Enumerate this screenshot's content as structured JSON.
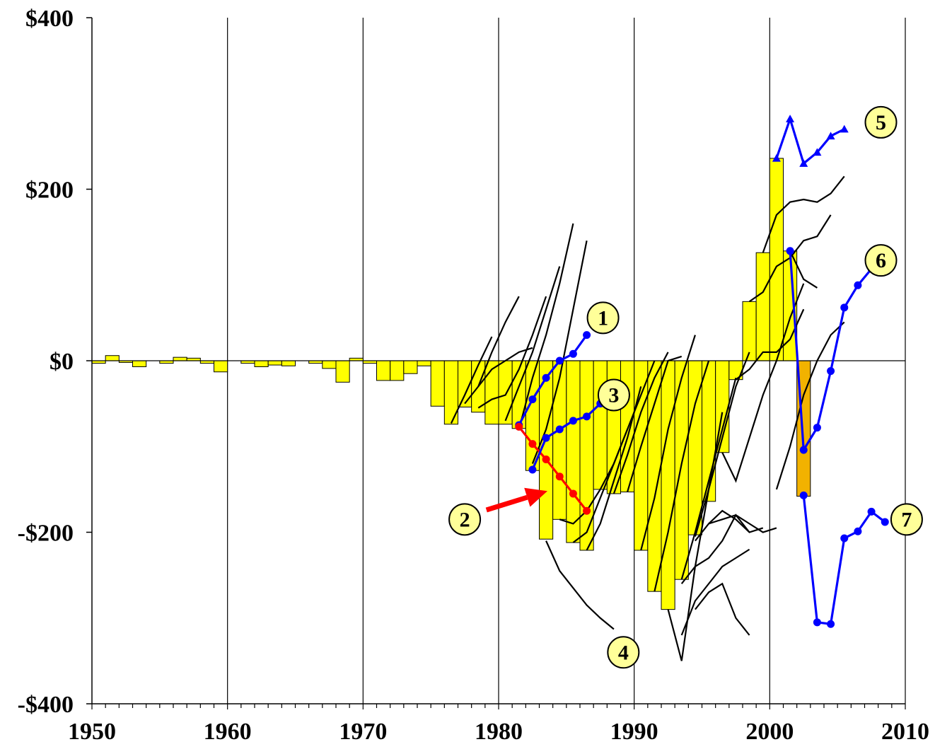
{
  "chart_data": {
    "type": "bar",
    "title": "",
    "xlabel": "",
    "ylabel": "",
    "xlim": [
      1950,
      2010
    ],
    "ylim": [
      -400,
      400
    ],
    "x_ticks": [
      1950,
      1960,
      1970,
      1980,
      1990,
      2000,
      2010
    ],
    "x_tick_labels": [
      "1950",
      "1960",
      "1970",
      "1980",
      "1990",
      "2000",
      "2010"
    ],
    "y_ticks": [
      400,
      200,
      0,
      -200,
      -400
    ],
    "y_tick_labels": [
      "$400",
      "$200",
      "$0",
      "-$200",
      "-$400"
    ],
    "grid": "vertical lines at decades",
    "bars": {
      "years": [
        1950,
        1951,
        1952,
        1953,
        1954,
        1955,
        1956,
        1957,
        1958,
        1959,
        1960,
        1961,
        1962,
        1963,
        1964,
        1965,
        1966,
        1967,
        1968,
        1969,
        1970,
        1971,
        1972,
        1973,
        1974,
        1975,
        1976,
        1977,
        1978,
        1979,
        1980,
        1981,
        1982,
        1983,
        1984,
        1985,
        1986,
        1987,
        1988,
        1989,
        1990,
        1991,
        1992,
        1993,
        1994,
        1995,
        1996,
        1997,
        1998,
        1999,
        2000,
        2001
      ],
      "values": [
        -3,
        6,
        -2,
        -7,
        0,
        -3,
        4,
        3,
        -3,
        -13,
        0,
        -3,
        -7,
        -5,
        -6,
        0,
        -3,
        -9,
        -25,
        3,
        -3,
        -23,
        -23,
        -15,
        -6,
        -53,
        -74,
        -54,
        -60,
        -74,
        -74,
        -79,
        -128,
        -208,
        -185,
        -212,
        -221,
        -150,
        -155,
        -153,
        -221,
        -269,
        -290,
        -255,
        -203,
        -164,
        -107,
        -22,
        69,
        126,
        236,
        128
      ],
      "color": "#ffff00",
      "highlight": {
        "year": 2002,
        "value": -158,
        "color": "#f2b200"
      }
    },
    "projection_lines": [
      {
        "x": [
          1976,
          1977,
          1978,
          1979
        ],
        "y": [
          -73,
          -40,
          -5,
          28
        ]
      },
      {
        "x": [
          1977,
          1978,
          1979,
          1980,
          1981
        ],
        "y": [
          -50,
          -30,
          10,
          45,
          75
        ]
      },
      {
        "x": [
          1978,
          1979,
          1980,
          1981,
          1982,
          1983
        ],
        "y": [
          -55,
          -45,
          -40,
          -10,
          30,
          75
        ]
      },
      {
        "x": [
          1978,
          1979,
          1980,
          1981,
          1982
        ],
        "y": [
          -30,
          -10,
          0,
          10,
          15
        ]
      },
      {
        "x": [
          1980,
          1981,
          1982,
          1983,
          1984
        ],
        "y": [
          -70,
          -30,
          10,
          60,
          110
        ]
      },
      {
        "x": [
          1981,
          1982,
          1983,
          1984,
          1985
        ],
        "y": [
          -80,
          -20,
          30,
          90,
          160
        ]
      },
      {
        "x": [
          1982,
          1983,
          1984,
          1985,
          1986
        ],
        "y": [
          -120,
          -80,
          -20,
          60,
          140
        ]
      },
      {
        "x": [
          1983,
          1984,
          1985,
          1986,
          1987,
          1988
        ],
        "y": [
          -210,
          -245,
          -265,
          -285,
          -300,
          -313
        ]
      },
      {
        "x": [
          1984,
          1985,
          1986,
          1987
        ],
        "y": [
          -185,
          -190,
          -175,
          -150
        ]
      },
      {
        "x": [
          1985,
          1986,
          1987,
          1988,
          1989
        ],
        "y": [
          -212,
          -200,
          -160,
          -120,
          -80
        ]
      },
      {
        "x": [
          1986,
          1987,
          1988,
          1989,
          1990
        ],
        "y": [
          -221,
          -190,
          -140,
          -90,
          -30
        ]
      },
      {
        "x": [
          1987,
          1988,
          1989,
          1990,
          1991
        ],
        "y": [
          -150,
          -120,
          -80,
          -40,
          0
        ]
      },
      {
        "x": [
          1988,
          1989,
          1990,
          1991,
          1992
        ],
        "y": [
          -155,
          -110,
          -60,
          -20,
          10
        ]
      },
      {
        "x": [
          1989,
          1990,
          1991,
          1992,
          1993
        ],
        "y": [
          -153,
          -100,
          -50,
          0,
          5
        ]
      },
      {
        "x": [
          1990,
          1991,
          1992,
          1993,
          1994
        ],
        "y": [
          -221,
          -160,
          -80,
          -20,
          30
        ]
      },
      {
        "x": [
          1991,
          1992,
          1993,
          1994,
          1995
        ],
        "y": [
          -269,
          -200,
          -120,
          -50,
          0
        ]
      },
      {
        "x": [
          1992,
          1993,
          1994,
          1995,
          1996
        ],
        "y": [
          -290,
          -350,
          -240,
          -150,
          -60
        ]
      },
      {
        "x": [
          1993,
          1994,
          1995,
          1996,
          1997
        ],
        "y": [
          -255,
          -200,
          -140,
          -80,
          -20
        ]
      },
      {
        "x": [
          1994,
          1995,
          1996,
          1997,
          1998
        ],
        "y": [
          -205,
          -150,
          -90,
          -30,
          10
        ]
      },
      {
        "x": [
          1993,
          1994,
          1995,
          1996,
          1997,
          1998
        ],
        "y": [
          -260,
          -240,
          -230,
          -210,
          -180,
          -200
        ]
      },
      {
        "x": [
          1994,
          1995,
          1996,
          1997,
          1998,
          1999
        ],
        "y": [
          -210,
          -190,
          -175,
          -185,
          -200,
          -195
        ]
      },
      {
        "x": [
          1995,
          1996,
          1997,
          1998,
          1999,
          2000
        ],
        "y": [
          -190,
          -185,
          -180,
          -190,
          -200,
          -195
        ]
      },
      {
        "x": [
          1993,
          1994,
          1995,
          1996,
          1997,
          1998
        ],
        "y": [
          -320,
          -280,
          -260,
          -240,
          -230,
          -220
        ]
      },
      {
        "x": [
          1994,
          1995,
          1996,
          1997,
          1998
        ],
        "y": [
          -290,
          -270,
          -260,
          -300,
          -320
        ]
      },
      {
        "x": [
          1996,
          1997,
          1998,
          1999,
          2000,
          2001,
          2002
        ],
        "y": [
          -107,
          -140,
          -90,
          -40,
          0,
          50,
          90
        ]
      },
      {
        "x": [
          1997,
          1998,
          1999,
          2000,
          2001,
          2002
        ],
        "y": [
          -22,
          -10,
          10,
          10,
          25,
          60
        ]
      },
      {
        "x": [
          1998,
          1999,
          2000,
          2001,
          2002,
          2003,
          2004
        ],
        "y": [
          69,
          80,
          110,
          120,
          140,
          145,
          170
        ]
      },
      {
        "x": [
          1999,
          2000,
          2001,
          2002,
          2003,
          2004,
          2005
        ],
        "y": [
          126,
          170,
          185,
          188,
          185,
          195,
          215
        ]
      },
      {
        "x": [
          2001,
          2002,
          2003
        ],
        "y": [
          128,
          95,
          85
        ]
      },
      {
        "x": [
          2000,
          2001,
          2002,
          2003,
          2004,
          2005
        ],
        "y": [
          -150,
          -100,
          -40,
          0,
          30,
          45
        ]
      }
    ],
    "highlighted_series": [
      {
        "callout": "1",
        "color": "#0000ff",
        "marker": "circle",
        "x": [
          1981,
          1982,
          1983,
          1984,
          1985,
          1986
        ],
        "y": [
          -75,
          -45,
          -20,
          0,
          8,
          30
        ]
      },
      {
        "callout": "2",
        "color": "#ff0000",
        "marker": "circle",
        "x": [
          1981,
          1982,
          1983,
          1984,
          1985,
          1986
        ],
        "y": [
          -77,
          -97,
          -115,
          -135,
          -155,
          -175
        ]
      },
      {
        "callout": "3",
        "color": "#0000ff",
        "marker": "circle",
        "x": [
          1982,
          1983,
          1984,
          1985,
          1986,
          1987
        ],
        "y": [
          -127,
          -90,
          -80,
          -70,
          -65,
          -50
        ]
      },
      {
        "callout": "5",
        "color": "#0000ff",
        "marker": "triangle",
        "x": [
          2000,
          2001,
          2002,
          2003,
          2004,
          2005
        ],
        "y": [
          236,
          282,
          230,
          243,
          262,
          270
        ]
      },
      {
        "callout": "6",
        "color": "#0000ff",
        "marker": "circle",
        "x": [
          2001,
          2002,
          2003,
          2004,
          2005,
          2006,
          2007
        ],
        "y": [
          128,
          -104,
          -78,
          -12,
          62,
          88,
          107
        ]
      },
      {
        "callout": "7",
        "color": "#0000ff",
        "marker": "circle",
        "x": [
          2002,
          2003,
          2004,
          2005,
          2006,
          2007,
          2008
        ],
        "y": [
          -157,
          -305,
          -307,
          -207,
          -199,
          -176,
          -188
        ]
      }
    ],
    "callouts": [
      {
        "label": "1",
        "x": 1987.7,
        "y": 50
      },
      {
        "label": "2",
        "x": 1977.5,
        "y": -185
      },
      {
        "label": "3",
        "x": 1988.5,
        "y": -40
      },
      {
        "label": "4",
        "x": 1989.2,
        "y": -340
      },
      {
        "label": "5",
        "x": 2008.2,
        "y": 278
      },
      {
        "label": "6",
        "x": 2008.2,
        "y": 117
      },
      {
        "label": "7",
        "x": 2010.1,
        "y": -185
      }
    ],
    "arrow": {
      "color": "#ff0000",
      "from": [
        1979.1,
        -174
      ],
      "to": [
        1983.6,
        -152
      ]
    }
  }
}
